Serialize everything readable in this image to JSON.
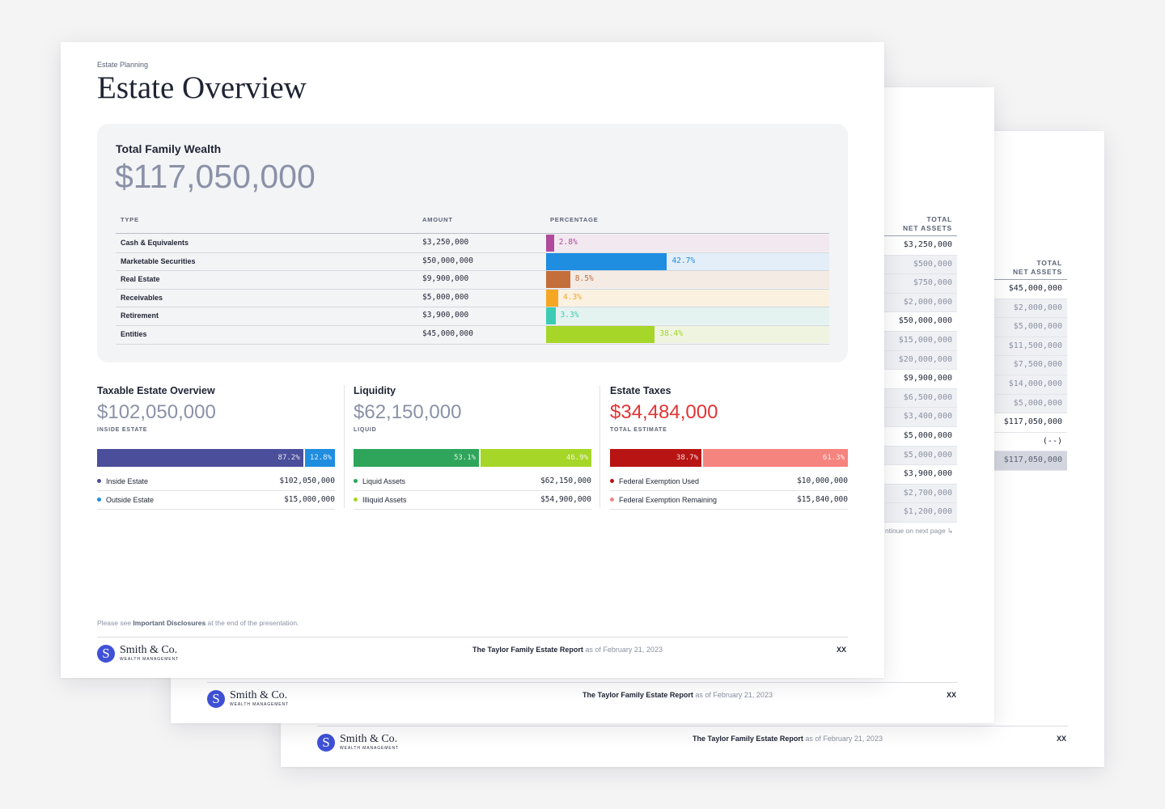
{
  "back_page_3": {
    "header_line1": "TOTAL",
    "header_line2": "NET ASSETS",
    "values": [
      "$45,000,000",
      "$2,000,000",
      "$5,000,000",
      "$11,500,000",
      "$7,500,000",
      "$14,000,000",
      "$5,000,000",
      "$117,050,000",
      "(--)",
      "$117,050,000"
    ],
    "footer": {
      "report_title": "The Taylor Family Estate Report",
      "as_of": "as of February 21, 2023",
      "page": "XX"
    },
    "logo": {
      "letter": "S",
      "name": "Smith & Co.",
      "sub": "WEALTH MANAGEMENT"
    }
  },
  "back_page_2": {
    "header_line1": "TOTAL",
    "header_line2": "NET ASSETS",
    "values": [
      "$3,250,000",
      "$500,000",
      "$750,000",
      "$2,000,000",
      "$50,000,000",
      "$15,000,000",
      "$20,000,000",
      "$9,900,000",
      "$6,500,000",
      "$3,400,000",
      "$5,000,000",
      "$5,000,000",
      "$3,900,000",
      "$2,700,000",
      "$1,200,000"
    ],
    "continue_text": "ntinue on next page ↳",
    "footer": {
      "report_title": "The Taylor Family Estate Report",
      "as_of": "as of February 21, 2023",
      "page": "XX"
    },
    "logo": {
      "letter": "S",
      "name": "Smith & Co.",
      "sub": "WEALTH MANAGEMENT"
    }
  },
  "page": {
    "eyebrow": "Estate Planning",
    "title": "Estate Overview",
    "total_family_wealth": {
      "label": "Total Family Wealth",
      "value": "$117,050,000",
      "columns": {
        "type": "TYPE",
        "amount": "AMOUNT",
        "percentage": "PERCENTAGE"
      },
      "rows": [
        {
          "type": "Cash & Equivalents",
          "amount": "$3,250,000",
          "pct_label": "2.8%",
          "pct": 2.8,
          "color": "#b04a9c",
          "bg": "#f2e8ef"
        },
        {
          "type": "Marketable Securities",
          "amount": "$50,000,000",
          "pct_label": "42.7%",
          "pct": 42.7,
          "color": "#1f8de0",
          "bg": "#e3eef8"
        },
        {
          "type": "Real Estate",
          "amount": "$9,900,000",
          "pct_label": "8.5%",
          "pct": 8.5,
          "color": "#c46e3c",
          "bg": "#f3ebe4"
        },
        {
          "type": "Receivables",
          "amount": "$5,000,000",
          "pct_label": "4.3%",
          "pct": 4.3,
          "color": "#f5a623",
          "bg": "#fbf1e1"
        },
        {
          "type": "Retirement",
          "amount": "$3,900,000",
          "pct_label": "3.3%",
          "pct": 3.3,
          "color": "#3ccbb4",
          "bg": "#e4f3f0"
        },
        {
          "type": "Entities",
          "amount": "$45,000,000",
          "pct_label": "38.4%",
          "pct": 38.4,
          "color": "#a6d627",
          "bg": "#eef4e0"
        }
      ]
    },
    "taxable": {
      "heading": "Taxable Estate Overview",
      "value": "$102,050,000",
      "sub": "INSIDE ESTATE",
      "segments": [
        {
          "label": "87.2%",
          "pct": 87.2,
          "color": "#4b4e9a"
        },
        {
          "label": "12.8%",
          "pct": 12.8,
          "color": "#1f8de0"
        }
      ],
      "legend": [
        {
          "name": "Inside Estate",
          "amount": "$102,050,000",
          "color": "#4b4e9a"
        },
        {
          "name": "Outside Estate",
          "amount": "$15,000,000",
          "color": "#1f8de0"
        }
      ]
    },
    "liquidity": {
      "heading": "Liquidity",
      "value": "$62,150,000",
      "sub": "LIQUID",
      "segments": [
        {
          "label": "53.1%",
          "pct": 53.1,
          "color": "#2ea55a"
        },
        {
          "label": "46.9%",
          "pct": 46.9,
          "color": "#a6d627"
        }
      ],
      "legend": [
        {
          "name": "Liquid Assets",
          "amount": "$62,150,000",
          "color": "#2ea55a"
        },
        {
          "name": "Illiquid Assets",
          "amount": "$54,900,000",
          "color": "#a6d627"
        }
      ]
    },
    "taxes": {
      "heading": "Estate Taxes",
      "value": "$34,484,000",
      "value_color": "#e23434",
      "sub": "TOTAL ESTIMATE",
      "segments": [
        {
          "label": "38.7%",
          "pct": 38.7,
          "color": "#b81414"
        },
        {
          "label": "61.3%",
          "pct": 61.3,
          "color": "#f5837e"
        }
      ],
      "legend": [
        {
          "name": "Federal Exemption Used",
          "amount": "$10,000,000",
          "color": "#b81414"
        },
        {
          "name": "Federal Exemption Remaining",
          "amount": "$15,840,000",
          "color": "#f5837e"
        }
      ]
    },
    "disclosure": {
      "pre": "Please see ",
      "link": "Important Disclosures",
      "post": " at the end of the presentation."
    },
    "footer": {
      "report_title": "The Taylor Family Estate Report",
      "as_of": "as of February 21, 2023",
      "page": "XX"
    },
    "logo": {
      "letter": "S",
      "name": "Smith & Co.",
      "sub": "WEALTH MANAGEMENT"
    }
  }
}
